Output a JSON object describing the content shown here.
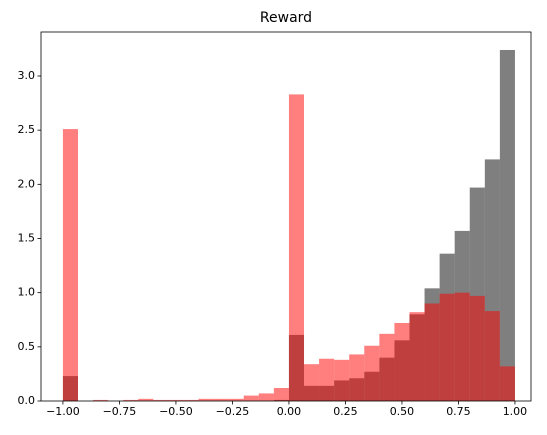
{
  "chart_data": {
    "type": "histogram",
    "title": "Reward",
    "bins": [
      -1,
      -0.9333,
      -0.8667,
      -0.8,
      -0.7333,
      -0.6667,
      -0.6,
      -0.5333,
      -0.4667,
      -0.4,
      -0.3333,
      -0.2667,
      -0.2,
      -0.1333,
      -0.0667,
      0,
      0.0667,
      0.1333,
      0.2,
      0.2667,
      0.3333,
      0.4,
      0.4667,
      0.5333,
      0.6,
      0.6667,
      0.7333,
      0.8,
      0.8667,
      0.9333,
      1
    ],
    "series": [
      {
        "color": "rgba(0,0,0,0.5)",
        "values": [
          0.23,
          0,
          0,
          0,
          0,
          0,
          0,
          0,
          0,
          0,
          0,
          0,
          0,
          0,
          0.01,
          0.61,
          0.14,
          0.14,
          0.19,
          0.21,
          0.27,
          0.4,
          0.56,
          0.8,
          1.04,
          1.36,
          1.57,
          1.97,
          2.23,
          3.24
        ]
      },
      {
        "color": "rgba(255,0,0,0.5)",
        "values": [
          2.51,
          0,
          0.01,
          0,
          0.01,
          0.02,
          0.01,
          0.01,
          0.01,
          0.02,
          0.02,
          0.02,
          0.05,
          0.07,
          0.12,
          2.83,
          0.34,
          0.39,
          0.38,
          0.43,
          0.51,
          0.62,
          0.72,
          0.82,
          0.9,
          0.99,
          1.0,
          0.97,
          0.83,
          0.32
        ]
      }
    ],
    "xlim": [
      -1.097,
      1.071
    ],
    "ylim": [
      0,
      3.406
    ],
    "xticks": [
      {
        "value": -1,
        "label": "−1.00"
      },
      {
        "value": -0.75,
        "label": "−0.75"
      },
      {
        "value": -0.5,
        "label": "−0.50"
      },
      {
        "value": -0.25,
        "label": "−0.25"
      },
      {
        "value": 0,
        "label": "0.00"
      },
      {
        "value": 0.25,
        "label": "0.25"
      },
      {
        "value": 0.5,
        "label": "0.50"
      },
      {
        "value": 0.75,
        "label": "0.75"
      },
      {
        "value": 1,
        "label": "1.00"
      }
    ],
    "yticks": [
      {
        "value": 0,
        "label": "0.0"
      },
      0.5,
      {
        "value": 1,
        "label": "1.0"
      },
      1.5,
      {
        "value": 2,
        "label": "2.0"
      },
      2.5,
      {
        "value": 3,
        "label": "3.0"
      }
    ],
    "grid": false
  }
}
